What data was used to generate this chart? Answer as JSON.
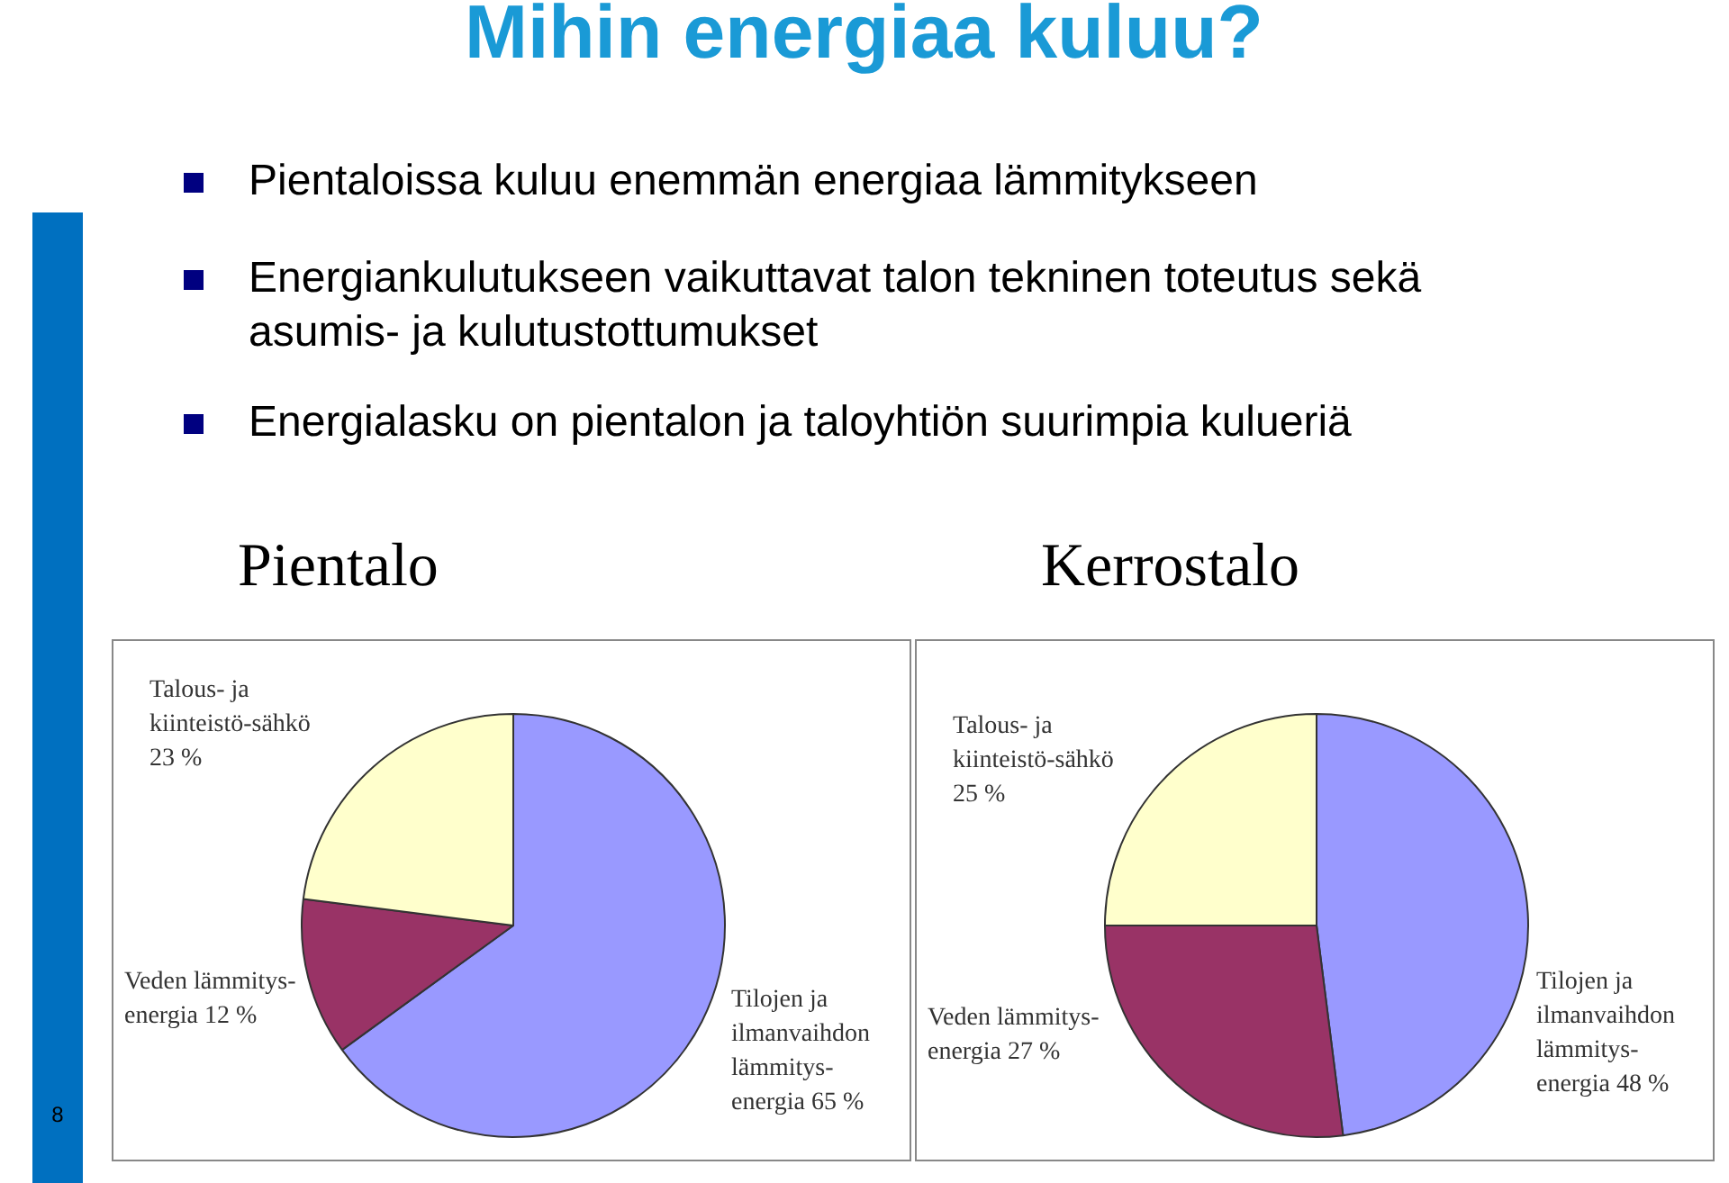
{
  "chart_data": [
    {
      "type": "other",
      "title": "Mihin energiaa kuluu?",
      "annotations": [
        "Pientaloissa kuluu enemmän energiaa lämmitykseen",
        "Energiankulutukseen vaikuttavat talon tekninen toteutus sekä asumis- ja kulutustottumukset",
        "Energialasku on pientalon ja taloyhtiön suurimpia kulueriä",
        "8"
      ]
    },
    {
      "type": "pie",
      "title": "Pientalo",
      "categories": [
        "Tilojen ja ilmanvaihdon lämmitys-energia",
        "Veden lämmitys-energia",
        "Talous- ja kiinteistö-sähkö"
      ],
      "values": [
        65,
        12,
        23
      ],
      "value_labels": [
        "65 %",
        "12 %",
        "23 %"
      ],
      "colors": [
        "#9999ff",
        "#993366",
        "#ffffcc"
      ]
    },
    {
      "type": "pie",
      "title": "Kerrostalo",
      "categories": [
        "Tilojen ja ilmanvaihdon lämmitys-energia",
        "Veden lämmitys-energia",
        "Talous- ja kiinteistö-sähkö"
      ],
      "values": [
        48,
        27,
        25
      ],
      "value_labels": [
        "48 %",
        "27 %",
        "25 %"
      ],
      "colors": [
        "#9999ff",
        "#993366",
        "#ffffcc"
      ]
    }
  ]
}
